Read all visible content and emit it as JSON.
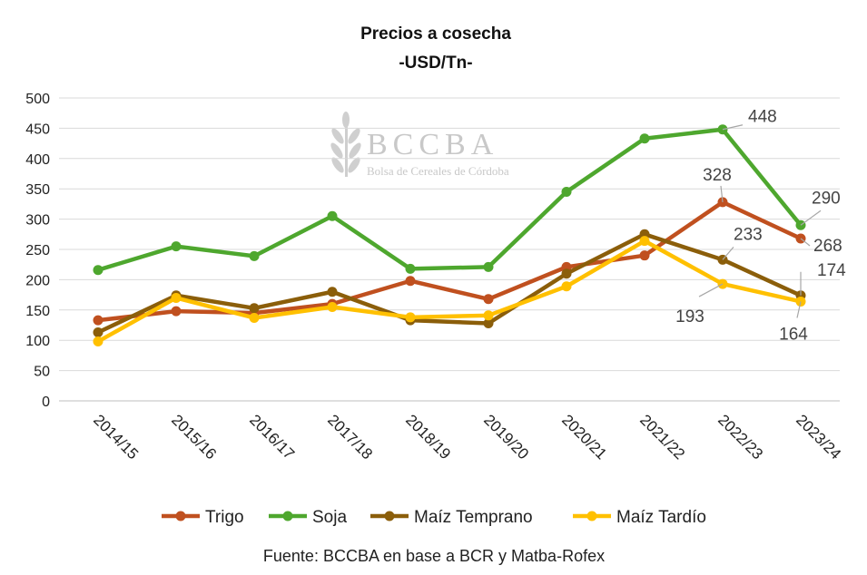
{
  "chart_data": {
    "type": "line",
    "title": "Precios a cosecha",
    "subtitle": "-USD/Tn-",
    "categories": [
      "2014/15",
      "2015/16",
      "2016/17",
      "2017/18",
      "2018/19",
      "2019/20",
      "2020/21",
      "2021/22",
      "2022/23",
      "2023/24"
    ],
    "ylim": [
      0,
      500
    ],
    "yticks": [
      0,
      50,
      100,
      150,
      200,
      250,
      300,
      350,
      400,
      450,
      500
    ],
    "grid": true,
    "legend_position": "bottom",
    "series": [
      {
        "name": "Trigo",
        "color": "#C0501F",
        "values": [
          133,
          148,
          145,
          160,
          198,
          168,
          221,
          240,
          328,
          268
        ]
      },
      {
        "name": "Soja",
        "color": "#4EA72E",
        "values": [
          216,
          255,
          239,
          305,
          218,
          221,
          345,
          433,
          448,
          290
        ]
      },
      {
        "name": "Maíz Temprano",
        "color": "#8B5E0A",
        "values": [
          113,
          174,
          153,
          180,
          133,
          128,
          210,
          275,
          233,
          174
        ]
      },
      {
        "name": "Maíz Tardío",
        "color": "#FFC000",
        "values": [
          98,
          170,
          137,
          155,
          138,
          141,
          189,
          264,
          193,
          164
        ]
      }
    ],
    "data_labels": [
      {
        "series": "Soja",
        "index": 8,
        "text": "448"
      },
      {
        "series": "Soja",
        "index": 9,
        "text": "290"
      },
      {
        "series": "Trigo",
        "index": 8,
        "text": "328"
      },
      {
        "series": "Trigo",
        "index": 9,
        "text": "268"
      },
      {
        "series": "Maíz Temprano",
        "index": 8,
        "text": "233"
      },
      {
        "series": "Maíz Temprano",
        "index": 9,
        "text": "174"
      },
      {
        "series": "Maíz Tardío",
        "index": 8,
        "text": "193"
      },
      {
        "series": "Maíz Tardío",
        "index": 9,
        "text": "164"
      }
    ],
    "source": "Fuente: BCCBA en base a BCR y Matba-Rofex",
    "watermark": {
      "name": "BCCBA",
      "tagline": "Bolsa de Cereales de Córdoba"
    }
  }
}
